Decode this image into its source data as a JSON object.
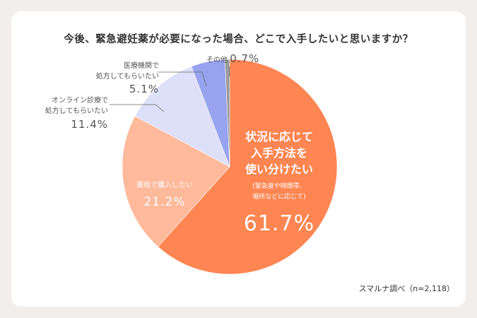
{
  "chart_data": {
    "type": "pie",
    "title": "今後、緊急避妊薬が必要になった場合、どこで入手したいと思いますか？",
    "start": "top",
    "direction": "clockwise",
    "slices": [
      {
        "label": "状況に応じて入手方法を使い分けたい",
        "note": "(緊急度や時間帯、場所などに応じて)",
        "value": 61.7,
        "pct_label": "61.7%",
        "color": "#ff8552"
      },
      {
        "label": "薬局で購入したい",
        "value": 21.2,
        "pct_label": "21.2%",
        "color": "#ffb99b"
      },
      {
        "label": "オンライン診療で処方してもらいたい",
        "value": 11.4,
        "pct_label": "11.4%",
        "color": "#dde0f8"
      },
      {
        "label": "医療機関で処方してもらいたい",
        "value": 5.1,
        "pct_label": "5.1%",
        "color": "#97a3ee"
      },
      {
        "label": "その他",
        "value": 0.7,
        "pct_label": "0.7%",
        "color": "#9a9a9a"
      }
    ],
    "source": "スマルナ調べ（n=2,118）"
  },
  "labels": {
    "main_l1": "状況に応じて",
    "main_l2": "入手方法を",
    "main_l3": "使い分けたい",
    "main_note1": "(緊急度や時間帯、",
    "main_note2": "場所などに応じて)",
    "online_l1": "オンライン診療で",
    "online_l2": "処方してもらいたい",
    "clinic_l1": "医療機関で",
    "clinic_l2": "処方してもらいたい"
  }
}
